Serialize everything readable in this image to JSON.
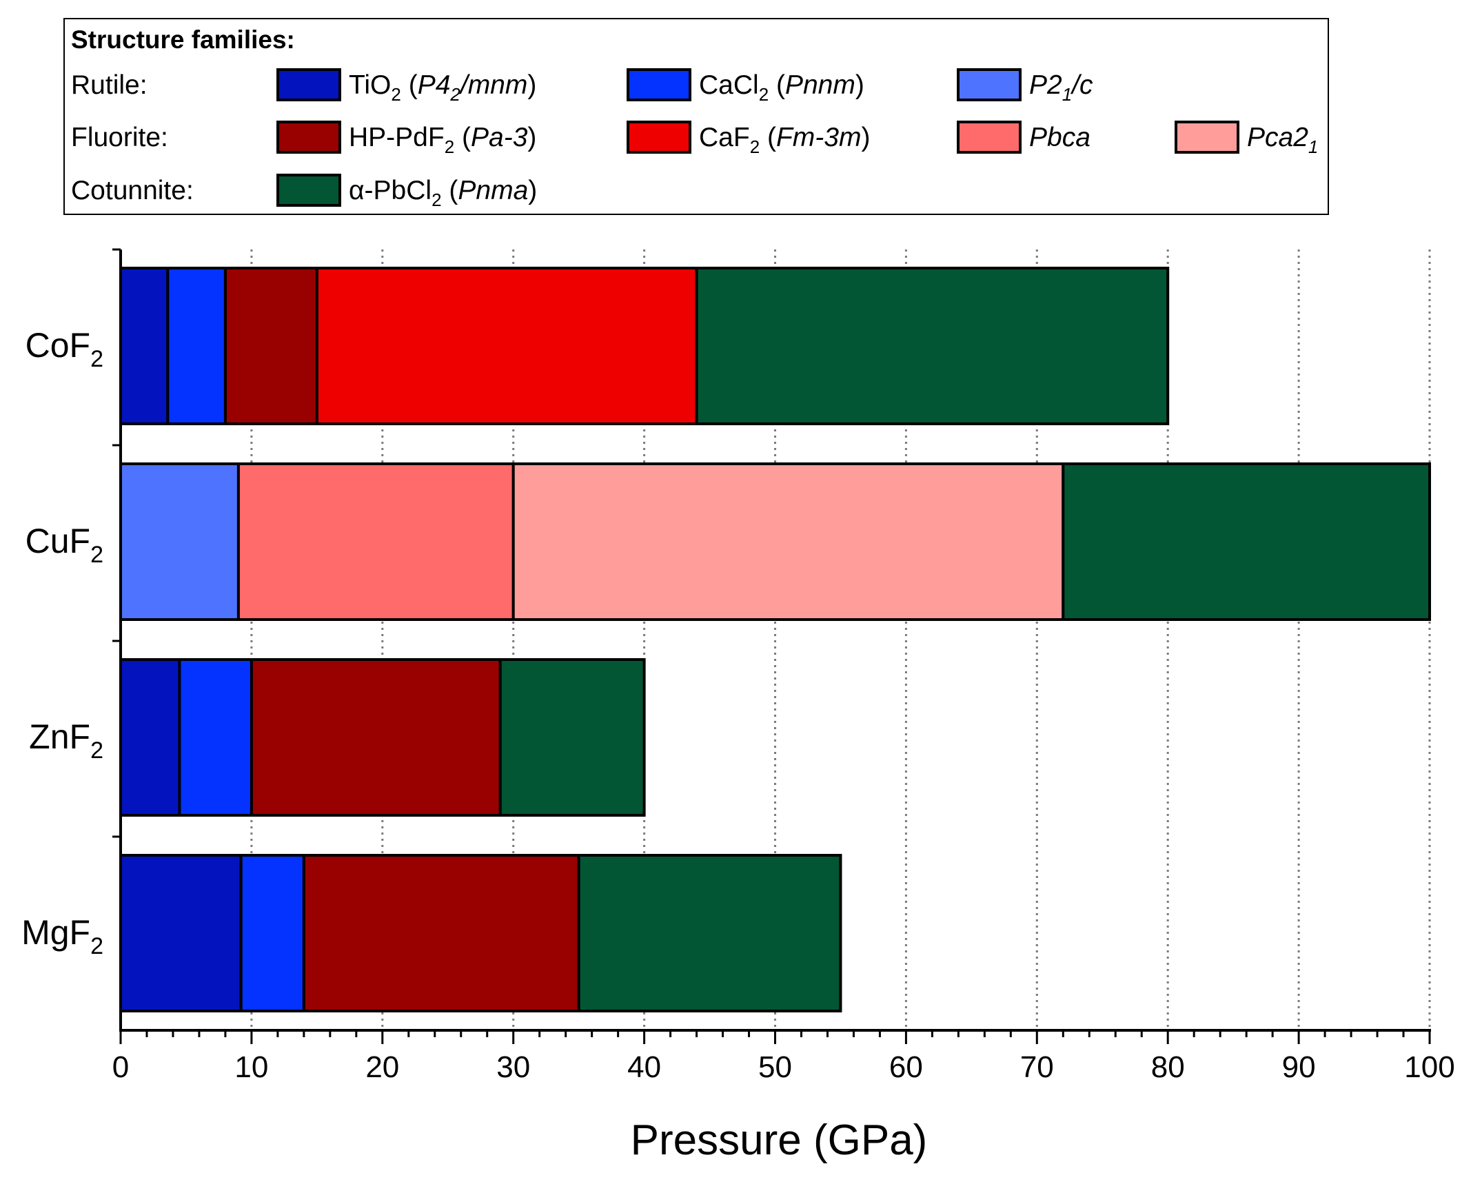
{
  "chart_data": {
    "type": "bar",
    "orientation": "horizontal",
    "stacked": true,
    "xlabel": "Pressure (GPa)",
    "xlim": [
      0,
      100
    ],
    "xticks": [
      0,
      10,
      20,
      30,
      40,
      50,
      60,
      70,
      80,
      90,
      100
    ],
    "grid": "vertical dotted at major ticks",
    "categories": [
      {
        "formula": "CoF",
        "sub": "2"
      },
      {
        "formula": "CuF",
        "sub": "2"
      },
      {
        "formula": "ZnF",
        "sub": "2"
      },
      {
        "formula": "MgF",
        "sub": "2"
      }
    ],
    "structures": {
      "rutile": {
        "color": "#0314BE"
      },
      "cacl2": {
        "color": "#0433FF"
      },
      "p21c": {
        "color": "#4E73FF"
      },
      "hppdf2": {
        "color": "#990000"
      },
      "caf2": {
        "color": "#EE0000"
      },
      "pbca": {
        "color": "#FF6B6B"
      },
      "pca21": {
        "color": "#FF9D9B"
      },
      "pbcl2": {
        "color": "#025634"
      }
    },
    "bars": [
      {
        "material": "CoF2",
        "segments": [
          {
            "structure": "rutile",
            "from": 0,
            "to": 3.6
          },
          {
            "structure": "cacl2",
            "from": 3.6,
            "to": 8
          },
          {
            "structure": "hppdf2",
            "from": 8,
            "to": 15
          },
          {
            "structure": "caf2",
            "from": 15,
            "to": 44
          },
          {
            "structure": "pbcl2",
            "from": 44,
            "to": 80
          }
        ]
      },
      {
        "material": "CuF2",
        "segments": [
          {
            "structure": "p21c",
            "from": 0,
            "to": 9
          },
          {
            "structure": "pbca",
            "from": 9,
            "to": 30
          },
          {
            "structure": "pca21",
            "from": 30,
            "to": 72
          },
          {
            "structure": "pbcl2",
            "from": 72,
            "to": 100
          }
        ]
      },
      {
        "material": "ZnF2",
        "segments": [
          {
            "structure": "rutile",
            "from": 0,
            "to": 4.5
          },
          {
            "structure": "cacl2",
            "from": 4.5,
            "to": 10
          },
          {
            "structure": "hppdf2",
            "from": 10,
            "to": 29
          },
          {
            "structure": "pbcl2",
            "from": 29,
            "to": 40
          }
        ]
      },
      {
        "material": "MgF2",
        "segments": [
          {
            "structure": "rutile",
            "from": 0,
            "to": 9.2
          },
          {
            "structure": "cacl2",
            "from": 9.2,
            "to": 14
          },
          {
            "structure": "hppdf2",
            "from": 14,
            "to": 35
          },
          {
            "structure": "pbcl2",
            "from": 35,
            "to": 55
          }
        ]
      }
    ]
  },
  "legend": {
    "title": "Structure families:",
    "placement": "top",
    "families": [
      {
        "name": "Rutile:",
        "entries": [
          {
            "structure": "rutile",
            "formula": "TiO",
            "sub": "2",
            "space_group": "P4",
            "sg_sub": "2",
            "sg_tail": "/mnm"
          },
          {
            "structure": "cacl2",
            "formula": "CaCl",
            "sub": "2",
            "space_group": "Pnnm",
            "sg_sub": "",
            "sg_tail": ""
          },
          {
            "structure": "p21c",
            "formula": "",
            "sub": "",
            "space_group": "P2",
            "sg_sub": "1",
            "sg_tail": "/c"
          }
        ]
      },
      {
        "name": "Fluorite:",
        "entries": [
          {
            "structure": "hppdf2",
            "formula": "HP-PdF",
            "sub": "2",
            "space_group": "Pa-3",
            "sg_sub": "",
            "sg_tail": ""
          },
          {
            "structure": "caf2",
            "formula": "CaF",
            "sub": "2",
            "space_group": "Fm-3m",
            "sg_sub": "",
            "sg_tail": ""
          },
          {
            "structure": "pbca",
            "formula": "",
            "sub": "",
            "space_group": "Pbca",
            "sg_sub": "",
            "sg_tail": ""
          },
          {
            "structure": "pca21",
            "formula": "",
            "sub": "",
            "space_group": "Pca2",
            "sg_sub": "1",
            "sg_tail": ""
          }
        ]
      },
      {
        "name": "Cotunnite:",
        "entries": [
          {
            "structure": "pbcl2",
            "formula": "α-PbCl",
            "sub": "2",
            "space_group": "Pnma",
            "sg_sub": "",
            "sg_tail": ""
          }
        ]
      }
    ]
  }
}
